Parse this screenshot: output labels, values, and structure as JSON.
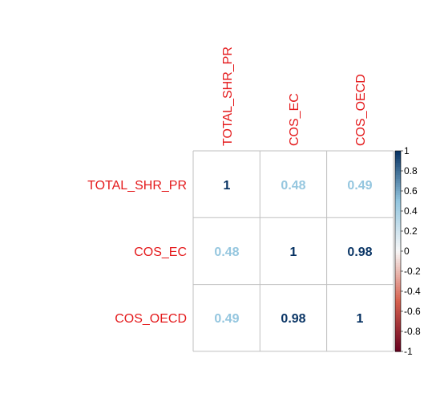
{
  "chart_data": {
    "type": "heatmap",
    "variables": [
      "TOTAL_SHR_PR",
      "COS_EC",
      "COS_OECD"
    ],
    "matrix": [
      [
        1,
        0.48,
        0.49
      ],
      [
        0.48,
        1,
        0.98
      ],
      [
        0.49,
        0.98,
        1
      ]
    ],
    "value_labels": [
      [
        "1",
        "0.48",
        "0.49"
      ],
      [
        "0.48",
        "1",
        "0.98"
      ],
      [
        "0.49",
        "0.98",
        "1"
      ]
    ],
    "colorbar": {
      "range": [
        -1,
        1
      ],
      "ticks": [
        "1",
        "0.8",
        "0.6",
        "0.4",
        "0.2",
        "0",
        "-0.2",
        "-0.4",
        "-0.6",
        "-0.8",
        "-1"
      ],
      "tick_values": [
        1,
        0.8,
        0.6,
        0.4,
        0.2,
        0,
        -0.2,
        -0.4,
        -0.6,
        -0.8,
        -1
      ],
      "colors": {
        "low": "#67001f",
        "mid_low": "#f4a582",
        "mid": "#f7f7f7",
        "mid_high": "#92c5de",
        "high": "#053061"
      }
    },
    "label_color": "#e41a1c",
    "grid_color": "#bfbfbf"
  }
}
